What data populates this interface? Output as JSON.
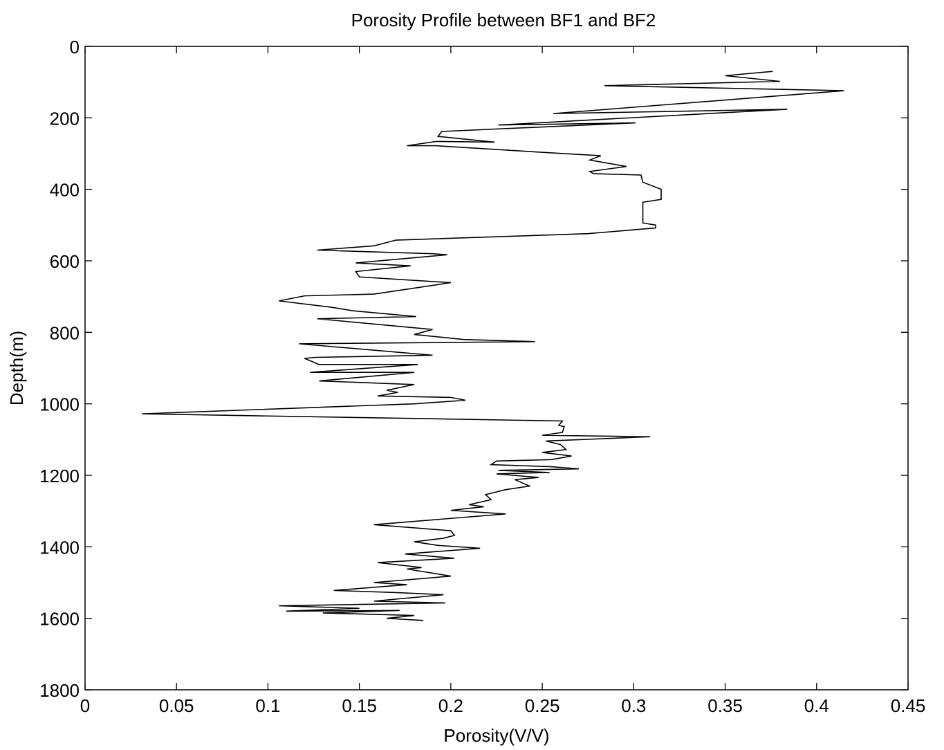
{
  "chart_data": {
    "type": "line",
    "title": "Porosity Profile between BF1 and BF2",
    "xlabel": "Porosity(V/V)",
    "ylabel": "Depth(m)",
    "xlim": [
      0,
      0.45
    ],
    "ylim": [
      0,
      1800
    ],
    "y_reversed": true,
    "grid": false,
    "x_ticks": [
      0,
      0.05,
      0.1,
      0.15,
      0.2,
      0.25,
      0.3,
      0.35,
      0.4,
      0.45
    ],
    "x_tick_labels": [
      "0",
      "0.05",
      "0.1",
      "0.15",
      "0.2",
      "0.25",
      "0.3",
      "0.35",
      "0.4",
      "0.45"
    ],
    "y_ticks": [
      0,
      200,
      400,
      600,
      800,
      1000,
      1200,
      1400,
      1600,
      1800
    ],
    "y_tick_labels": [
      "0",
      "200",
      "400",
      "600",
      "800",
      "1000",
      "1200",
      "1400",
      "1600",
      "1800"
    ],
    "line_color": "#000000",
    "series": [
      {
        "points": [
          [
            0.376,
            70
          ],
          [
            0.35,
            82
          ],
          [
            0.38,
            98
          ],
          [
            0.284,
            110
          ],
          [
            0.415,
            124
          ],
          [
            0.256,
            188
          ],
          [
            0.384,
            176
          ],
          [
            0.226,
            220
          ],
          [
            0.301,
            214
          ],
          [
            0.195,
            238
          ],
          [
            0.193,
            252
          ],
          [
            0.224,
            268
          ],
          [
            0.192,
            266
          ],
          [
            0.176,
            278
          ],
          [
            0.192,
            278
          ],
          [
            0.255,
            298
          ],
          [
            0.282,
            306
          ],
          [
            0.276,
            318
          ],
          [
            0.296,
            336
          ],
          [
            0.276,
            350
          ],
          [
            0.278,
            356
          ],
          [
            0.304,
            360
          ],
          [
            0.305,
            380
          ],
          [
            0.315,
            400
          ],
          [
            0.315,
            428
          ],
          [
            0.305,
            436
          ],
          [
            0.305,
            494
          ],
          [
            0.312,
            500
          ],
          [
            0.312,
            508
          ],
          [
            0.275,
            524
          ],
          [
            0.17,
            542
          ],
          [
            0.158,
            558
          ],
          [
            0.127,
            570
          ],
          [
            0.19,
            580
          ],
          [
            0.198,
            583
          ],
          [
            0.148,
            606
          ],
          [
            0.178,
            614
          ],
          [
            0.148,
            630
          ],
          [
            0.15,
            645
          ],
          [
            0.2,
            661
          ],
          [
            0.158,
            693
          ],
          [
            0.12,
            698
          ],
          [
            0.106,
            712
          ],
          [
            0.135,
            730
          ],
          [
            0.147,
            740
          ],
          [
            0.181,
            756
          ],
          [
            0.127,
            762
          ],
          [
            0.19,
            792
          ],
          [
            0.18,
            806
          ],
          [
            0.207,
            820
          ],
          [
            0.246,
            826
          ],
          [
            0.117,
            832
          ],
          [
            0.19,
            864
          ],
          [
            0.126,
            870
          ],
          [
            0.12,
            873
          ],
          [
            0.128,
            890
          ],
          [
            0.182,
            890
          ],
          [
            0.123,
            912
          ],
          [
            0.18,
            912
          ],
          [
            0.128,
            936
          ],
          [
            0.18,
            946
          ],
          [
            0.165,
            962
          ],
          [
            0.171,
            968
          ],
          [
            0.16,
            978
          ],
          [
            0.2,
            982
          ],
          [
            0.208,
            990
          ],
          [
            0.18,
            1000
          ],
          [
            0.031,
            1028
          ],
          [
            0.261,
            1048
          ],
          [
            0.259,
            1060
          ],
          [
            0.262,
            1064
          ],
          [
            0.261,
            1080
          ],
          [
            0.25,
            1088
          ],
          [
            0.309,
            1092
          ],
          [
            0.252,
            1104
          ],
          [
            0.26,
            1114
          ],
          [
            0.263,
            1128
          ],
          [
            0.25,
            1136
          ],
          [
            0.266,
            1146
          ],
          [
            0.255,
            1156
          ],
          [
            0.225,
            1160
          ],
          [
            0.222,
            1170
          ],
          [
            0.255,
            1176
          ],
          [
            0.27,
            1182
          ],
          [
            0.226,
            1186
          ],
          [
            0.254,
            1192
          ],
          [
            0.225,
            1196
          ],
          [
            0.248,
            1206
          ],
          [
            0.235,
            1212
          ],
          [
            0.243,
            1230
          ],
          [
            0.23,
            1240
          ],
          [
            0.219,
            1254
          ],
          [
            0.222,
            1268
          ],
          [
            0.21,
            1282
          ],
          [
            0.218,
            1288
          ],
          [
            0.2,
            1298
          ],
          [
            0.23,
            1308
          ],
          [
            0.158,
            1338
          ],
          [
            0.2,
            1355
          ],
          [
            0.202,
            1368
          ],
          [
            0.196,
            1376
          ],
          [
            0.18,
            1386
          ],
          [
            0.193,
            1396
          ],
          [
            0.216,
            1404
          ],
          [
            0.175,
            1420
          ],
          [
            0.202,
            1432
          ],
          [
            0.16,
            1444
          ],
          [
            0.184,
            1458
          ],
          [
            0.176,
            1462
          ],
          [
            0.2,
            1482
          ],
          [
            0.158,
            1500
          ],
          [
            0.176,
            1506
          ],
          [
            0.136,
            1522
          ],
          [
            0.17,
            1528
          ],
          [
            0.196,
            1534
          ],
          [
            0.158,
            1552
          ],
          [
            0.197,
            1557
          ],
          [
            0.106,
            1565
          ],
          [
            0.15,
            1572
          ],
          [
            0.11,
            1580
          ],
          [
            0.172,
            1578
          ],
          [
            0.13,
            1585
          ],
          [
            0.18,
            1592
          ],
          [
            0.165,
            1600
          ],
          [
            0.185,
            1606
          ]
        ]
      }
    ]
  }
}
